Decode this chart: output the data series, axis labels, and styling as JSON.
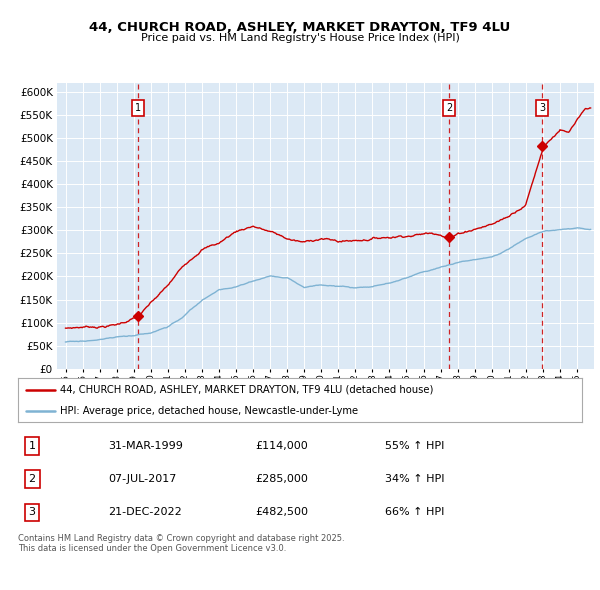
{
  "title": "44, CHURCH ROAD, ASHLEY, MARKET DRAYTON, TF9 4LU",
  "subtitle": "Price paid vs. HM Land Registry's House Price Index (HPI)",
  "plot_bg_color": "#dce9f5",
  "sale_color": "#cc0000",
  "hpi_color": "#7fb3d3",
  "sale_dates": [
    1999.25,
    2017.52,
    2022.97
  ],
  "sale_prices": [
    114000,
    285000,
    482500
  ],
  "sale_labels": [
    "1",
    "2",
    "3"
  ],
  "legend_sale": "44, CHURCH ROAD, ASHLEY, MARKET DRAYTON, TF9 4LU (detached house)",
  "legend_hpi": "HPI: Average price, detached house, Newcastle-under-Lyme",
  "table_data": [
    [
      "1",
      "31-MAR-1999",
      "£114,000",
      "55% ↑ HPI"
    ],
    [
      "2",
      "07-JUL-2017",
      "£285,000",
      "34% ↑ HPI"
    ],
    [
      "3",
      "21-DEC-2022",
      "£482,500",
      "66% ↑ HPI"
    ]
  ],
  "footer": "Contains HM Land Registry data © Crown copyright and database right 2025.\nThis data is licensed under the Open Government Licence v3.0.",
  "ylim": [
    0,
    620000
  ],
  "yticks": [
    0,
    50000,
    100000,
    150000,
    200000,
    250000,
    300000,
    350000,
    400000,
    450000,
    500000,
    550000,
    600000
  ],
  "xlim": [
    1994.5,
    2026.0
  ],
  "hpi_keypoints": [
    [
      1995.0,
      58000
    ],
    [
      1996.0,
      60000
    ],
    [
      1997.0,
      63000
    ],
    [
      1998.0,
      67000
    ],
    [
      1999.0,
      70000
    ],
    [
      2000.0,
      75000
    ],
    [
      2001.0,
      88000
    ],
    [
      2002.0,
      115000
    ],
    [
      2003.0,
      145000
    ],
    [
      2004.0,
      168000
    ],
    [
      2005.0,
      175000
    ],
    [
      2006.0,
      188000
    ],
    [
      2007.0,
      200000
    ],
    [
      2008.0,
      198000
    ],
    [
      2009.0,
      175000
    ],
    [
      2010.0,
      183000
    ],
    [
      2011.0,
      178000
    ],
    [
      2012.0,
      175000
    ],
    [
      2013.0,
      178000
    ],
    [
      2014.0,
      185000
    ],
    [
      2015.0,
      195000
    ],
    [
      2016.0,
      208000
    ],
    [
      2017.0,
      218000
    ],
    [
      2018.0,
      228000
    ],
    [
      2019.0,
      235000
    ],
    [
      2020.0,
      240000
    ],
    [
      2021.0,
      258000
    ],
    [
      2022.0,
      282000
    ],
    [
      2023.0,
      295000
    ],
    [
      2024.0,
      300000
    ],
    [
      2025.0,
      302000
    ]
  ],
  "sale_keypoints": [
    [
      1995.0,
      88000
    ],
    [
      1996.0,
      91000
    ],
    [
      1997.0,
      93000
    ],
    [
      1998.0,
      97000
    ],
    [
      1999.25,
      114000
    ],
    [
      2000.0,
      140000
    ],
    [
      2001.0,
      175000
    ],
    [
      2002.0,
      220000
    ],
    [
      2003.0,
      258000
    ],
    [
      2004.0,
      270000
    ],
    [
      2005.0,
      295000
    ],
    [
      2006.0,
      308000
    ],
    [
      2007.0,
      295000
    ],
    [
      2008.0,
      278000
    ],
    [
      2009.0,
      268000
    ],
    [
      2010.0,
      278000
    ],
    [
      2011.0,
      270000
    ],
    [
      2012.0,
      272000
    ],
    [
      2013.0,
      278000
    ],
    [
      2014.0,
      282000
    ],
    [
      2015.0,
      288000
    ],
    [
      2016.0,
      292000
    ],
    [
      2017.0,
      295000
    ],
    [
      2017.52,
      285000
    ],
    [
      2018.0,
      295000
    ],
    [
      2019.0,
      308000
    ],
    [
      2020.0,
      318000
    ],
    [
      2021.0,
      335000
    ],
    [
      2022.0,
      365000
    ],
    [
      2022.97,
      482500
    ],
    [
      2023.0,
      490000
    ],
    [
      2023.5,
      510000
    ],
    [
      2024.0,
      530000
    ],
    [
      2024.5,
      520000
    ],
    [
      2025.0,
      545000
    ],
    [
      2025.5,
      565000
    ]
  ]
}
